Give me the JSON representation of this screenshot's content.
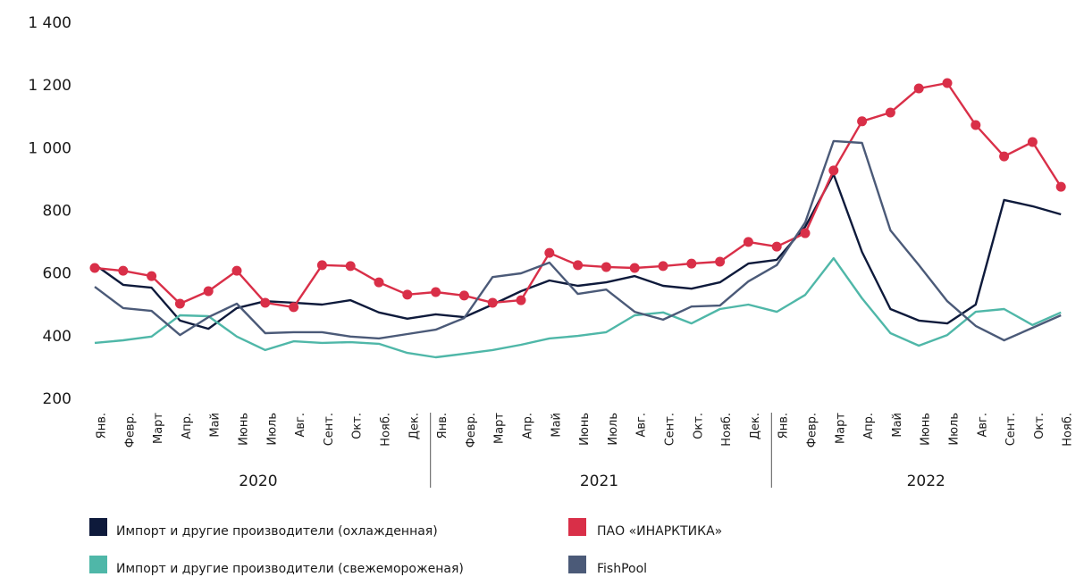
{
  "chart_data": {
    "type": "line",
    "groups": [
      {
        "name": "2020",
        "categories": [
          "Янв.",
          "Февр.",
          "Март",
          "Апр.",
          "Май",
          "Июнь",
          "Июль",
          "Авг.",
          "Сент.",
          "Окт.",
          "Нояб.",
          "Дек."
        ]
      },
      {
        "name": "2021",
        "categories": [
          "Янв.",
          "Февр.",
          "Март",
          "Апр.",
          "Май",
          "Июнь",
          "Июль",
          "Авг.",
          "Сент.",
          "Окт.",
          "Нояб.",
          "Дек."
        ]
      },
      {
        "name": "2022",
        "categories": [
          "Янв.",
          "Февр.",
          "Март",
          "Апр.",
          "Май",
          "Июнь",
          "Июль",
          "Авг.",
          "Сент.",
          "Окт.",
          "Нояб."
        ]
      }
    ],
    "ylim": [
      200,
      1400
    ],
    "yticks": [
      200,
      400,
      600,
      800,
      {
        "value": 1000,
        "label": "1 000"
      },
      {
        "value": 1200,
        "label": "1 200"
      },
      {
        "value": 1400,
        "label": "1 400"
      }
    ],
    "grid": false,
    "series": [
      {
        "name": "Импорт и другие производители (охлажденная)",
        "color": "#0e1a3b",
        "markers": false,
        "values": [
          630,
          565,
          556,
          451,
          425,
          491,
          513,
          508,
          502,
          516,
          477,
          457,
          471,
          462,
          502,
          545,
          579,
          562,
          573,
          593,
          562,
          553,
          573,
          633,
          645,
          750,
          918,
          670,
          488,
          451,
          442,
          502,
          836,
          816,
          790
        ]
      },
      {
        "name": "ПАО «ИНАРКТИКА»",
        "color": "#d92f48",
        "markers": true,
        "values": [
          619,
          610,
          593,
          505,
          545,
          610,
          508,
          494,
          628,
          625,
          573,
          534,
          542,
          531,
          508,
          516,
          667,
          628,
          622,
          619,
          625,
          633,
          639,
          702,
          687,
          730,
          930,
          1087,
          1115,
          1192,
          1209,
          1075,
          975,
          1021,
          878
        ]
      },
      {
        "name": "Импорт и другие производители (свежемороженая)",
        "color": "#4fb7a8",
        "markers": false,
        "values": [
          380,
          388,
          400,
          468,
          465,
          400,
          357,
          385,
          380,
          382,
          377,
          348,
          334,
          345,
          357,
          374,
          394,
          402,
          414,
          468,
          477,
          442,
          488,
          502,
          479,
          533,
          650,
          522,
          411,
          371,
          405,
          479,
          488,
          437,
          477
        ]
      },
      {
        "name": "FishPool",
        "color": "#4b5a78",
        "markers": false,
        "values": [
          559,
          491,
          482,
          405,
          462,
          505,
          411,
          414,
          414,
          400,
          394,
          408,
          422,
          459,
          590,
          602,
          636,
          536,
          550,
          479,
          454,
          496,
          499,
          576,
          628,
          764,
          1024,
          1018,
          739,
          628,
          513,
          434,
          388,
          428,
          468
        ]
      }
    ]
  }
}
